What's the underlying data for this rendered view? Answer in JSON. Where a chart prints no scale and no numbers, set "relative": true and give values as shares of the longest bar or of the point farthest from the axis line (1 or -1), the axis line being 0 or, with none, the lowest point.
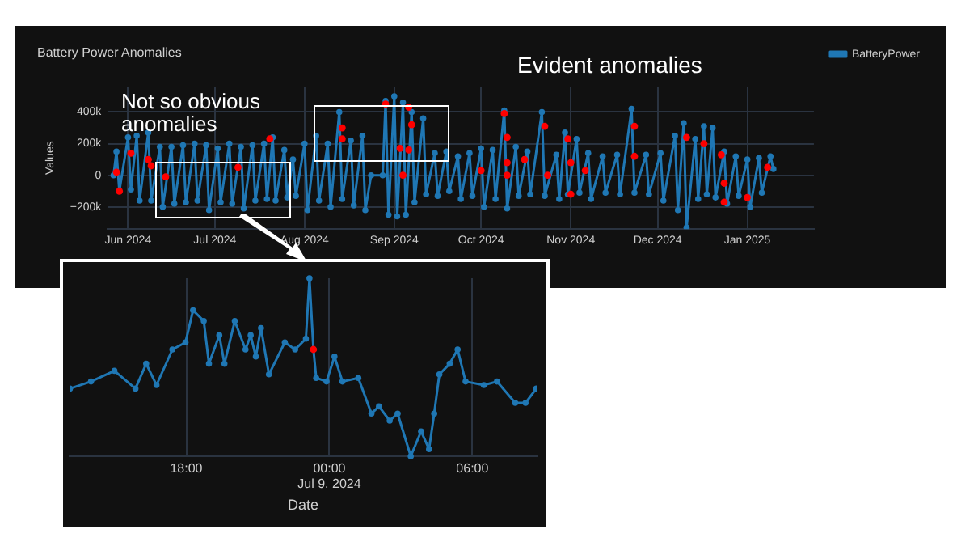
{
  "chart_data": [
    {
      "type": "line",
      "title": "Battery Power Anomalies",
      "ylabel": "Values",
      "annotations": [
        "Evident anomalies",
        "Not so obvious anomalies"
      ],
      "legend": "top right",
      "marker": "circle",
      "grid": true,
      "xlim": [
        "2024-05-25",
        "2025-01-24"
      ],
      "xticks": [
        {
          "value": "2024-06-01",
          "label": "Jun 2024"
        },
        {
          "value": "2024-07-01",
          "label": "Jul 2024"
        },
        {
          "value": "2024-08-01",
          "label": "Aug 2024"
        },
        {
          "value": "2024-09-01",
          "label": "Sep 2024"
        },
        {
          "value": "2024-10-01",
          "label": "Oct 2024"
        },
        {
          "value": "2024-11-01",
          "label": "Nov 2024"
        },
        {
          "value": "2024-12-01",
          "label": "Dec 2024"
        },
        {
          "value": "2025-01-01",
          "label": "Jan 2025"
        }
      ],
      "ylim": [
        -340000,
        560000
      ],
      "yticks": [
        {
          "value": -200000,
          "label": "−200k"
        },
        {
          "value": 0,
          "label": "0"
        },
        {
          "value": 200000,
          "label": "200k"
        },
        {
          "value": 400000,
          "label": "400k"
        }
      ],
      "series": [
        {
          "name": "BatteryPower",
          "color": "#1f77b4",
          "x": [
            "2024-05-27",
            "2024-05-28",
            "2024-05-29",
            "2024-06-01",
            "2024-06-02",
            "2024-06-04",
            "2024-06-05",
            "2024-06-08",
            "2024-06-09",
            "2024-06-12",
            "2024-06-13",
            "2024-06-16",
            "2024-06-17",
            "2024-06-20",
            "2024-06-21",
            "2024-06-24",
            "2024-06-25",
            "2024-06-28",
            "2024-06-29",
            "2024-07-02",
            "2024-07-03",
            "2024-07-06",
            "2024-07-07",
            "2024-07-10",
            "2024-07-11",
            "2024-07-14",
            "2024-07-15",
            "2024-07-18",
            "2024-07-19",
            "2024-07-21",
            "2024-07-22",
            "2024-07-25",
            "2024-07-26",
            "2024-07-28",
            "2024-07-29",
            "2024-08-01",
            "2024-08-02",
            "2024-08-05",
            "2024-08-06",
            "2024-08-09",
            "2024-08-10",
            "2024-08-13",
            "2024-08-14",
            "2024-08-17",
            "2024-08-18",
            "2024-08-21",
            "2024-08-22",
            "2024-08-24",
            "2024-08-28",
            "2024-08-29",
            "2024-08-30",
            "2024-09-01",
            "2024-09-02",
            "2024-09-04",
            "2024-09-05",
            "2024-09-07",
            "2024-09-08",
            "2024-09-11",
            "2024-09-12",
            "2024-09-15",
            "2024-09-16",
            "2024-09-19",
            "2024-09-20",
            "2024-09-23",
            "2024-09-24",
            "2024-09-27",
            "2024-09-28",
            "2024-10-01",
            "2024-10-02",
            "2024-10-05",
            "2024-10-06",
            "2024-10-09",
            "2024-10-10",
            "2024-10-13",
            "2024-10-14",
            "2024-10-17",
            "2024-10-18",
            "2024-10-22",
            "2024-10-23",
            "2024-10-27",
            "2024-10-28",
            "2024-10-30",
            "2024-10-31",
            "2024-11-03",
            "2024-11-04",
            "2024-11-07",
            "2024-11-08",
            "2024-11-12",
            "2024-11-13",
            "2024-11-17",
            "2024-11-18",
            "2024-11-22",
            "2024-11-23",
            "2024-11-27",
            "2024-11-28",
            "2024-12-02",
            "2024-12-03",
            "2024-12-07",
            "2024-12-08",
            "2024-12-10",
            "2024-12-11",
            "2024-12-14",
            "2024-12-15",
            "2024-12-17",
            "2024-12-18",
            "2024-12-20",
            "2024-12-21",
            "2024-12-24",
            "2024-12-25",
            "2024-12-28",
            "2024-12-29",
            "2025-01-01",
            "2025-01-02",
            "2025-01-05",
            "2025-01-06",
            "2025-01-09",
            "2025-01-10"
          ],
          "values": [
            0,
            150000,
            -100000,
            240000,
            -90000,
            250000,
            -160000,
            270000,
            -160000,
            180000,
            -200000,
            180000,
            -180000,
            190000,
            -170000,
            200000,
            -160000,
            190000,
            -220000,
            170000,
            -170000,
            200000,
            -180000,
            180000,
            -210000,
            190000,
            -160000,
            200000,
            -150000,
            240000,
            -160000,
            160000,
            -140000,
            100000,
            -130000,
            200000,
            -220000,
            250000,
            -160000,
            200000,
            -200000,
            400000,
            -150000,
            220000,
            -190000,
            250000,
            -220000,
            0,
            0,
            470000,
            -250000,
            500000,
            -260000,
            460000,
            -250000,
            400000,
            -170000,
            360000,
            -120000,
            140000,
            -130000,
            150000,
            -100000,
            120000,
            -150000,
            140000,
            -130000,
            170000,
            -200000,
            160000,
            -150000,
            410000,
            -210000,
            180000,
            -130000,
            150000,
            -120000,
            400000,
            -130000,
            130000,
            -150000,
            270000,
            -120000,
            230000,
            -110000,
            140000,
            -150000,
            120000,
            -110000,
            130000,
            -120000,
            420000,
            -110000,
            130000,
            -120000,
            140000,
            -160000,
            250000,
            -220000,
            330000,
            -330000,
            230000,
            -150000,
            310000,
            -120000,
            300000,
            -140000,
            150000,
            -180000,
            120000,
            -130000,
            100000,
            -200000,
            110000,
            -110000,
            120000,
            40000
          ]
        },
        {
          "type": "scatter",
          "color": "#ff0000",
          "x": [
            "2024-05-28",
            "2024-05-29",
            "2024-06-02",
            "2024-06-08",
            "2024-06-09",
            "2024-06-14",
            "2024-07-09",
            "2024-07-20",
            "2024-08-14",
            "2024-08-14",
            "2024-08-29",
            "2024-09-03",
            "2024-09-04",
            "2024-09-06",
            "2024-09-06",
            "2024-09-07",
            "2024-10-01",
            "2024-10-09",
            "2024-10-10",
            "2024-10-10",
            "2024-10-10",
            "2024-10-16",
            "2024-10-23",
            "2024-10-24",
            "2024-10-31",
            "2024-11-01",
            "2024-11-01",
            "2024-11-06",
            "2024-11-23",
            "2024-11-23",
            "2024-12-11",
            "2024-12-17",
            "2024-12-23",
            "2024-12-24",
            "2024-12-24",
            "2025-01-01",
            "2025-01-08"
          ],
          "values": [
            20000,
            -100000,
            140000,
            100000,
            60000,
            -10000,
            50000,
            230000,
            230000,
            300000,
            450000,
            170000,
            0,
            430000,
            160000,
            320000,
            30000,
            390000,
            240000,
            80000,
            0,
            100000,
            310000,
            0,
            230000,
            -120000,
            80000,
            30000,
            310000,
            120000,
            240000,
            200000,
            130000,
            -50000,
            -170000,
            -140000,
            50000
          ]
        }
      ]
    },
    {
      "type": "line",
      "xlabel": "Date",
      "relative": true,
      "grid": "x",
      "marker": "circle",
      "xlim": [
        "2024-07-08T13:06",
        "2024-07-09T08:42"
      ],
      "xticks": [
        {
          "value": "2024-07-08T18:00",
          "label": "18:00"
        },
        {
          "value": "2024-07-09T00:00",
          "label": "00:00\nJul 9, 2024"
        },
        {
          "value": "2024-07-09T06:00",
          "label": "06:00"
        }
      ],
      "series": [
        {
          "color": "#1f77b4",
          "x": [
            "2024-07-08T13:07",
            "2024-07-08T14:00",
            "2024-07-08T14:59",
            "2024-07-08T15:52",
            "2024-07-08T16:19",
            "2024-07-08T16:45",
            "2024-07-08T17:25",
            "2024-07-08T17:58",
            "2024-07-08T18:17",
            "2024-07-08T18:44",
            "2024-07-08T18:57",
            "2024-07-08T19:23",
            "2024-07-08T19:36",
            "2024-07-08T20:02",
            "2024-07-08T20:29",
            "2024-07-08T20:42",
            "2024-07-08T20:55",
            "2024-07-08T21:08",
            "2024-07-08T21:28",
            "2024-07-08T22:08",
            "2024-07-08T22:34",
            "2024-07-08T23:01",
            "2024-07-08T23:10",
            "2024-07-08T23:20",
            "2024-07-08T23:27",
            "2024-07-08T23:53",
            "2024-07-09T00:13",
            "2024-07-09T00:33",
            "2024-07-09T01:13",
            "2024-07-09T01:46",
            "2024-07-09T02:05",
            "2024-07-09T02:32",
            "2024-07-09T02:52",
            "2024-07-09T03:25",
            "2024-07-09T03:51",
            "2024-07-09T04:11",
            "2024-07-09T04:24",
            "2024-07-09T04:37",
            "2024-07-09T05:03",
            "2024-07-09T05:23",
            "2024-07-09T05:43",
            "2024-07-09T06:29",
            "2024-07-09T07:02",
            "2024-07-09T07:48",
            "2024-07-09T08:14",
            "2024-07-09T08:41"
          ],
          "values": [
            0.38,
            0.42,
            0.48,
            0.38,
            0.52,
            0.4,
            0.6,
            0.64,
            0.82,
            0.76,
            0.52,
            0.68,
            0.52,
            0.76,
            0.6,
            0.68,
            0.56,
            0.72,
            0.46,
            0.64,
            0.6,
            0.66,
            1,
            0.6,
            0.44,
            0.42,
            0.56,
            0.42,
            0.44,
            0.24,
            0.28,
            0.2,
            0.24,
            0,
            0.14,
            0.04,
            0.24,
            0.46,
            0.52,
            0.6,
            0.42,
            0.4,
            0.42,
            0.3,
            0.3,
            0.38
          ]
        },
        {
          "type": "scatter",
          "color": "#ff0000",
          "x": [
            "2024-07-08T23:20"
          ],
          "values": [
            0.6
          ]
        }
      ]
    }
  ]
}
